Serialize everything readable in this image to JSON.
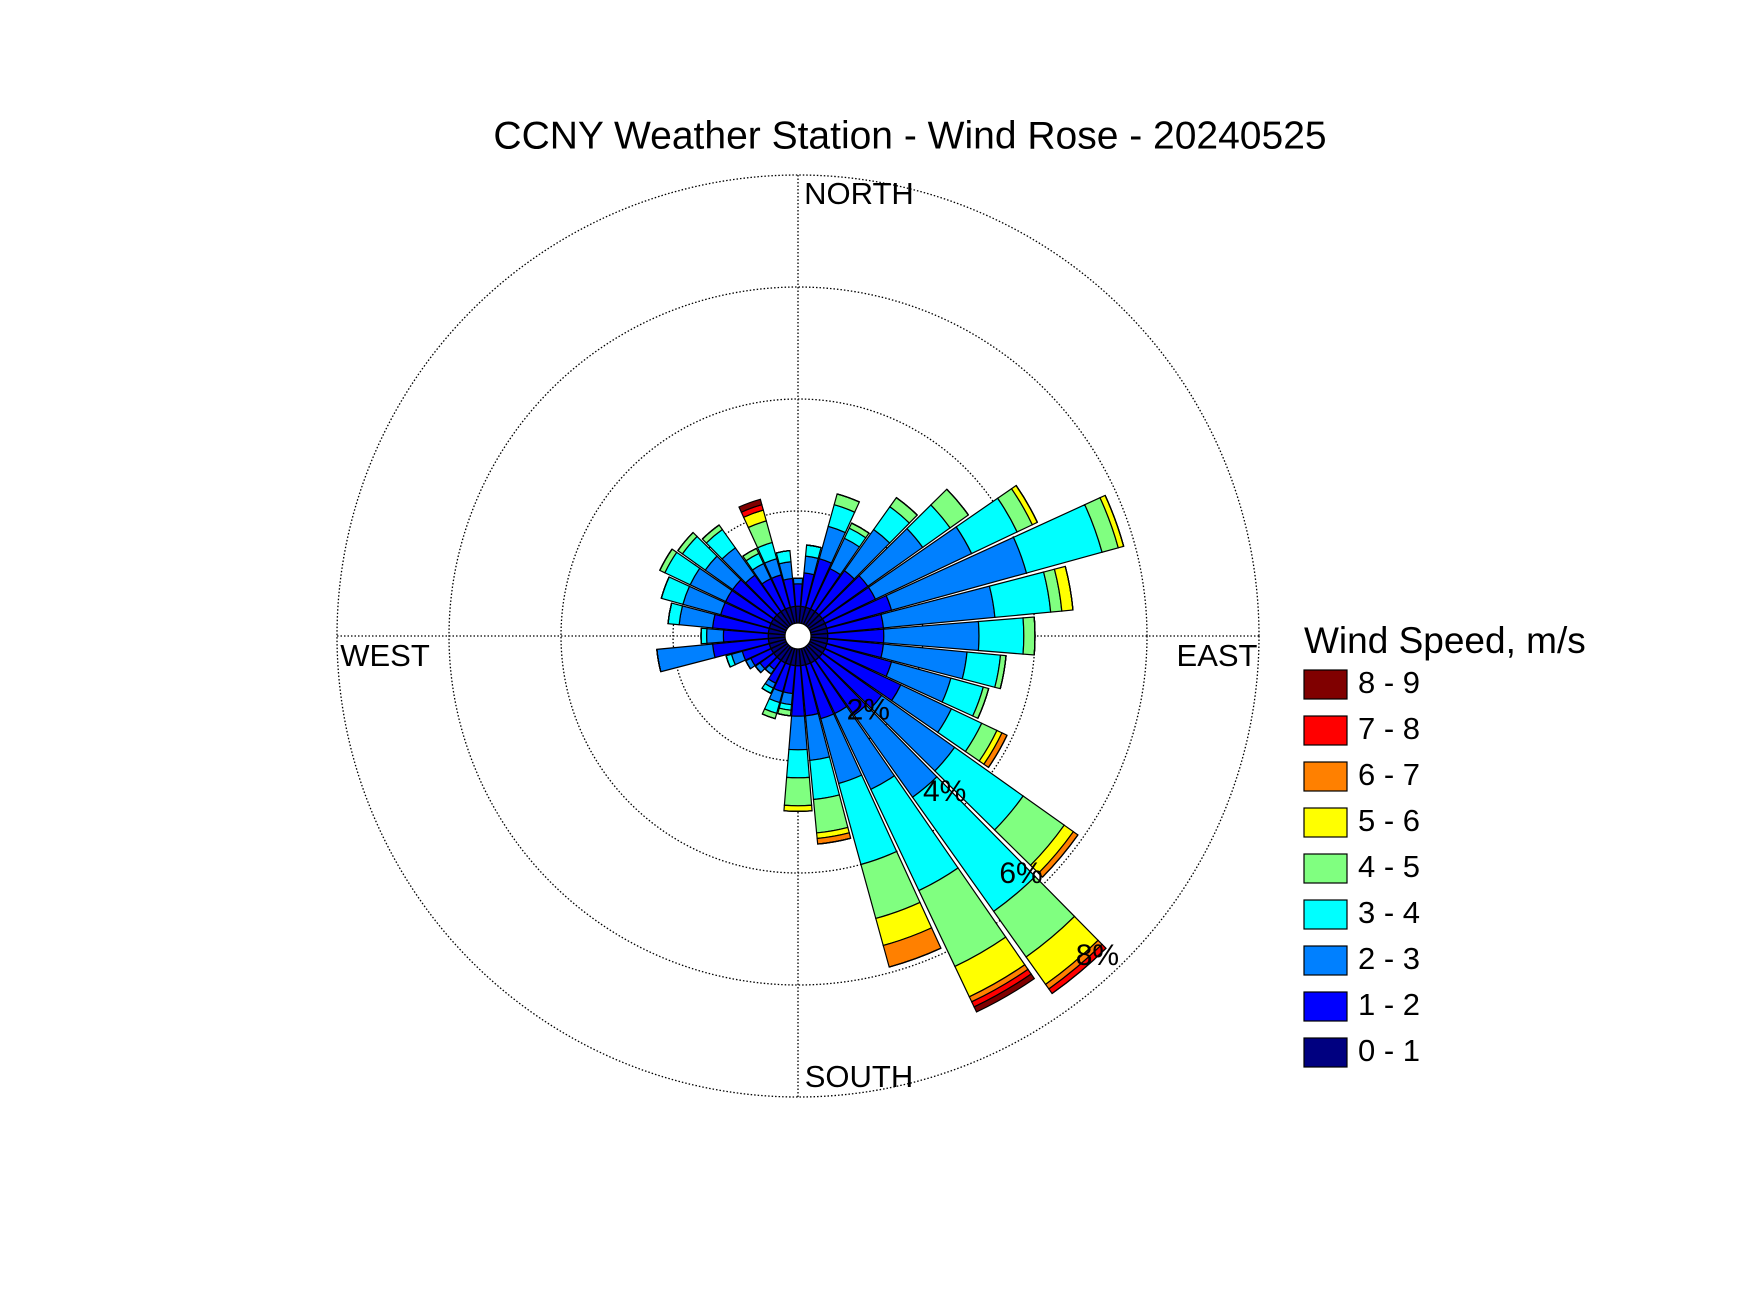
{
  "chart_data": {
    "type": "windrose",
    "title": "CCNY Weather Station - Wind Rose - 20240525",
    "direction_labels": {
      "north": "NORTH",
      "east": "EAST",
      "south": "SOUTH",
      "west": "WEST"
    },
    "legend_title": "Wind Speed, m/s",
    "legend": "right",
    "x": [
      0,
      10,
      20,
      30,
      40,
      50,
      60,
      70,
      80,
      90,
      100,
      110,
      120,
      130,
      140,
      150,
      160,
      170,
      180,
      190,
      200,
      210,
      220,
      230,
      240,
      250,
      260,
      270,
      280,
      290,
      300,
      310,
      320,
      330,
      340,
      350
    ],
    "rlim": [
      0,
      8
    ],
    "rticks": [
      {
        "value": 2,
        "label": "2%"
      },
      {
        "value": 4,
        "label": "4%"
      },
      {
        "value": 6,
        "label": "6%"
      },
      {
        "value": 8,
        "label": "8%"
      }
    ],
    "grid": true,
    "series": [
      {
        "name": "8 - 9",
        "color": "#800000",
        "values": [
          0,
          0,
          0,
          0,
          0,
          0,
          0,
          0,
          0,
          0,
          0,
          0,
          0,
          0,
          0,
          0.1,
          0,
          0,
          0,
          0,
          0,
          0,
          0,
          0,
          0,
          0,
          0,
          0,
          0,
          0,
          0,
          0,
          0,
          0,
          0.1,
          0
        ]
      },
      {
        "name": "7 - 8",
        "color": "#ff0000",
        "values": [
          0,
          0,
          0,
          0,
          0,
          0,
          0,
          0,
          0,
          0,
          0,
          0,
          0,
          0,
          0.1,
          0.1,
          0,
          0,
          0,
          0,
          0,
          0,
          0,
          0,
          0,
          0,
          0,
          0,
          0,
          0,
          0,
          0,
          0,
          0,
          0.1,
          0
        ]
      },
      {
        "name": "6 - 7",
        "color": "#ff8000",
        "values": [
          0,
          0,
          0,
          0,
          0,
          0,
          0,
          0,
          0,
          0,
          0,
          0,
          0.1,
          0.1,
          0.1,
          0.1,
          0.4,
          0.1,
          0,
          0,
          0,
          0,
          0,
          0,
          0,
          0,
          0,
          0,
          0,
          0,
          0,
          0,
          0,
          0,
          0,
          0
        ]
      },
      {
        "name": "5 - 6",
        "color": "#ffff00",
        "values": [
          0,
          0,
          0,
          0,
          0,
          0,
          0.1,
          0.1,
          0.2,
          0,
          0,
          0,
          0.1,
          0.2,
          0.6,
          0.6,
          0.5,
          0.1,
          0.1,
          0,
          0,
          0,
          0,
          0,
          0,
          0,
          0,
          0,
          0,
          0,
          0,
          0,
          0,
          0,
          0.2,
          0
        ]
      },
      {
        "name": "4 - 5",
        "color": "#80ff80",
        "values": [
          0,
          0,
          0.2,
          0.1,
          0.2,
          0.4,
          0.3,
          0.3,
          0.2,
          0.2,
          0.1,
          0.1,
          0.3,
          0.9,
          1.0,
          1.5,
          1.0,
          0.6,
          0.5,
          0.1,
          0.1,
          0,
          0,
          0,
          0,
          0,
          0,
          0,
          0,
          0,
          0.1,
          0.1,
          0.1,
          0.1,
          0.4,
          0
        ]
      },
      {
        "name": "3 - 4",
        "color": "#00ffff",
        "values": [
          0,
          0.2,
          0.4,
          0.2,
          0.5,
          0.6,
          0.9,
          1.4,
          1.0,
          0.8,
          0.6,
          0.6,
          0.6,
          1.5,
          2.5,
          2.0,
          1.5,
          0.7,
          0.5,
          0.1,
          0.2,
          0.1,
          0,
          0,
          0,
          0.1,
          0,
          0.1,
          0.2,
          0.4,
          0.5,
          0.5,
          0.4,
          0.2,
          0.3,
          0.2
        ]
      },
      {
        "name": "2 - 3",
        "color": "#0080ff",
        "values": [
          0.1,
          0.3,
          0.6,
          0.6,
          0.9,
          1.2,
          1.9,
          2.5,
          2.0,
          1.7,
          1.5,
          1.1,
          1.0,
          1.6,
          1.8,
          1.5,
          1.2,
          0.8,
          0.6,
          0.2,
          0.2,
          0.1,
          0.1,
          0.1,
          0.1,
          0.2,
          1.0,
          0.3,
          0.6,
          0.7,
          0.7,
          0.6,
          0.6,
          0.3,
          0.3,
          0.3
        ]
      },
      {
        "name": "1 - 2",
        "color": "#0000ff",
        "values": [
          0.4,
          0.6,
          0.9,
          0.8,
          0.9,
          1.0,
          1.0,
          1.2,
          1.0,
          1.0,
          1.0,
          1.2,
          1.5,
          1.3,
          1.2,
          1.0,
          1.0,
          0.9,
          0.9,
          0.5,
          0.5,
          0.4,
          0.2,
          0.3,
          0.4,
          0.5,
          1.0,
          0.8,
          1.0,
          0.9,
          0.9,
          0.9,
          0.8,
          0.6,
          0.6,
          0.5
        ]
      },
      {
        "name": "0 - 1",
        "color": "#000080",
        "values": [
          0.3,
          0.3,
          0.3,
          0.3,
          0.3,
          0.3,
          0.3,
          0.3,
          0.3,
          0.3,
          0.3,
          0.3,
          0.3,
          0.3,
          0.3,
          0.3,
          0.3,
          0.3,
          0.3,
          0.3,
          0.3,
          0.3,
          0.3,
          0.3,
          0.3,
          0.3,
          0.3,
          0.3,
          0.3,
          0.3,
          0.3,
          0.3,
          0.3,
          0.3,
          0.3,
          0.3
        ]
      }
    ]
  }
}
